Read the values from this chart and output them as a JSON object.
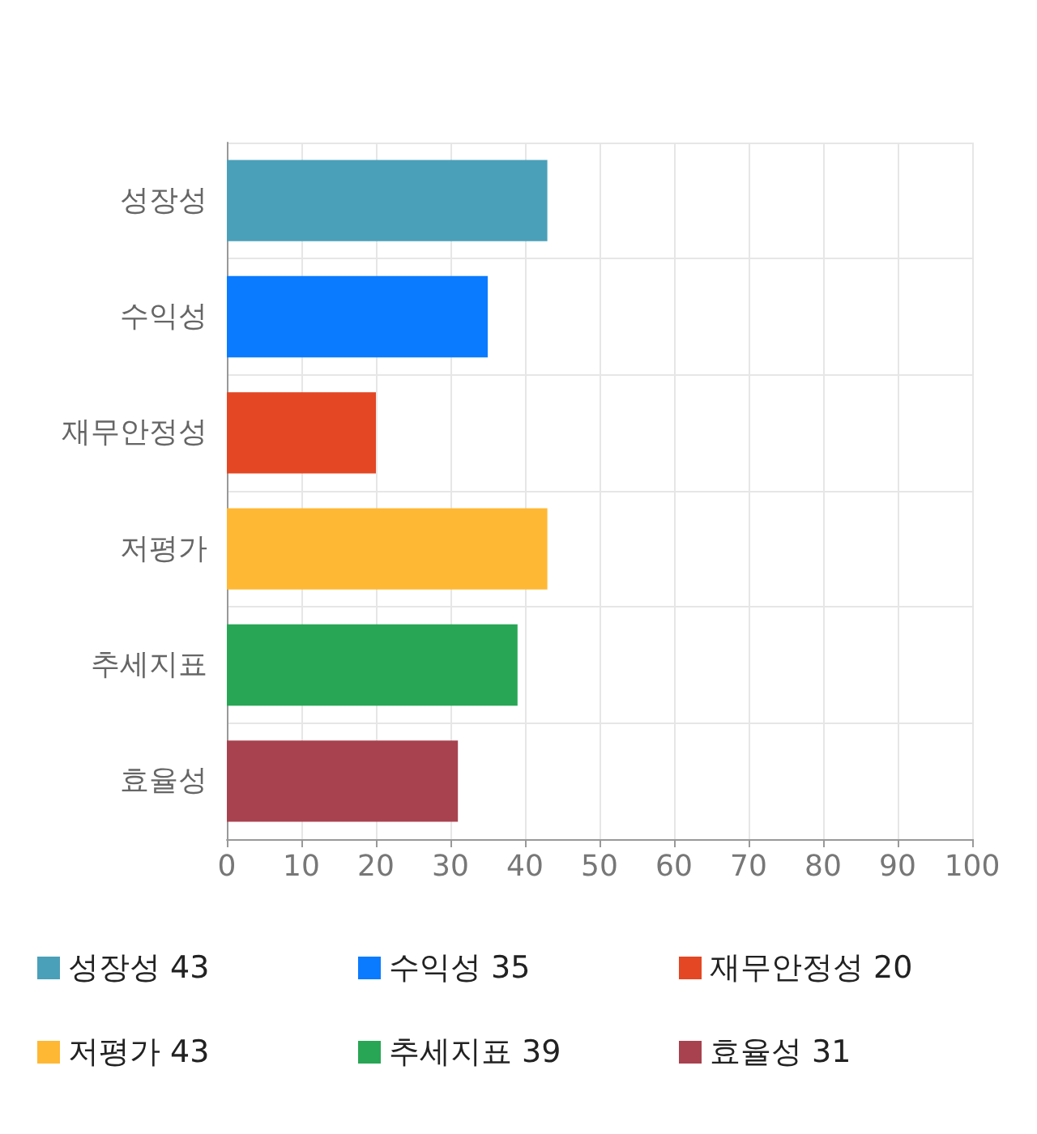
{
  "chart_data": {
    "type": "bar",
    "orientation": "horizontal",
    "stacked": true,
    "categories": [
      "성장성",
      "수익성",
      "재무안정성",
      "저평가",
      "추세지표",
      "효율성"
    ],
    "series": [
      {
        "name": "성장성 43",
        "color": "#4aa0b8",
        "values": [
          43,
          null,
          null,
          null,
          null,
          null
        ]
      },
      {
        "name": "수익성 35",
        "color": "#0a7bff",
        "values": [
          null,
          35,
          null,
          null,
          null,
          null
        ]
      },
      {
        "name": "재무안정성 20",
        "color": "#e34724",
        "values": [
          null,
          null,
          20,
          null,
          null,
          null
        ]
      },
      {
        "name": "저평가 43",
        "color": "#ffb834",
        "values": [
          null,
          null,
          null,
          43,
          null,
          null
        ]
      },
      {
        "name": "추세지표 39",
        "color": "#28a655",
        "values": [
          null,
          null,
          null,
          null,
          39,
          null
        ]
      },
      {
        "name": "효율성 31",
        "color": "#a8424f",
        "values": [
          null,
          null,
          null,
          null,
          null,
          31
        ]
      }
    ],
    "xlim": [
      0,
      100
    ],
    "xticks": [
      0,
      10,
      20,
      30,
      40,
      50,
      60,
      70,
      80,
      90,
      100
    ],
    "grid": true,
    "legend": "bottom"
  }
}
